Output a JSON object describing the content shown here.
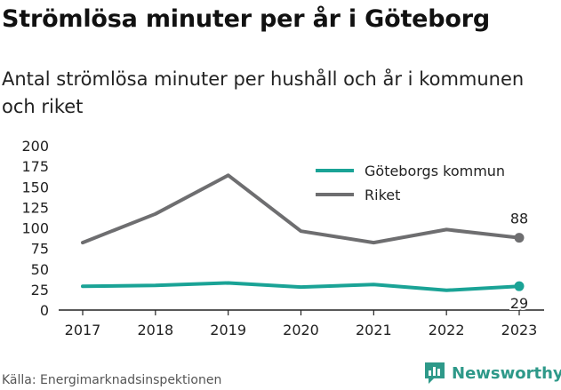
{
  "title": "Strömlösa minuter per år i Göteborg",
  "subtitle": "Antal strömlösa minuter per hushåll och år i kommunen och riket",
  "source": "Källa: Energimarknadsinspektionen",
  "brand": {
    "name": "Newsworthy",
    "icon": "newsworthy-logo-icon",
    "color": "#2e9989"
  },
  "chart_data": {
    "type": "line",
    "title": "Strömlösa minuter per år i Göteborg",
    "subtitle": "Antal strömlösa minuter per hushåll och år i kommunen och riket",
    "x": [
      "2017",
      "2018",
      "2019",
      "2020",
      "2021",
      "2022",
      "2023"
    ],
    "series": [
      {
        "name": "Göteborgs kommun",
        "color": "#1aa396",
        "values": [
          29,
          30,
          33,
          28,
          31,
          24,
          29
        ],
        "end_label": "29"
      },
      {
        "name": "Riket",
        "color": "#6e6e70",
        "values": [
          82,
          117,
          164,
          96,
          82,
          98,
          88
        ],
        "end_label": "88"
      }
    ],
    "yticks": [
      "0",
      "25",
      "50",
      "75",
      "100",
      "125",
      "150",
      "175",
      "200"
    ],
    "ylim": [
      0,
      200
    ],
    "xlabel": "",
    "ylabel": "",
    "grid": false,
    "legend_position": "top-right"
  }
}
